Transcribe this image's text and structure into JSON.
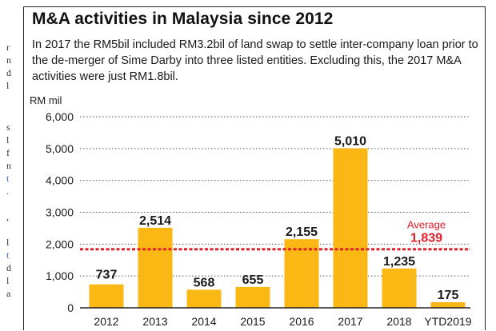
{
  "chart_data": {
    "type": "bar",
    "title": "M&A activities in Malaysia since 2012",
    "subtitle": "In 2017 the RM5bil included RM3.2bil of land swap to settle inter-company loan prior to the de-merger of Sime Darby into three listed entities. Excluding this, the 2017 M&A activities were just RM1.8bil.",
    "ylabel": "RM mil",
    "xlabel": "",
    "categories": [
      "2012",
      "2013",
      "2014",
      "2015",
      "2016",
      "2017",
      "2018",
      "YTD2019"
    ],
    "values": [
      737,
      2514,
      568,
      655,
      2155,
      5010,
      1235,
      175
    ],
    "value_labels": [
      "737",
      "2,514",
      "568",
      "655",
      "2,155",
      "5,010",
      "1,235",
      "175"
    ],
    "ylim": [
      0,
      6000
    ],
    "yticks": [
      0,
      1000,
      2000,
      3000,
      4000,
      5000,
      6000
    ],
    "ytick_labels": [
      "0",
      "1,000",
      "2,000",
      "3,000",
      "4,000",
      "5,000",
      "6,000"
    ],
    "grid": "dotted horizontal",
    "average": {
      "label": "Average",
      "value": 1839,
      "value_label": "1,839"
    },
    "colors": {
      "bar": "#fbb714",
      "average": "#e0202a",
      "text": "#1a1a1a",
      "grid": "#555555"
    }
  }
}
